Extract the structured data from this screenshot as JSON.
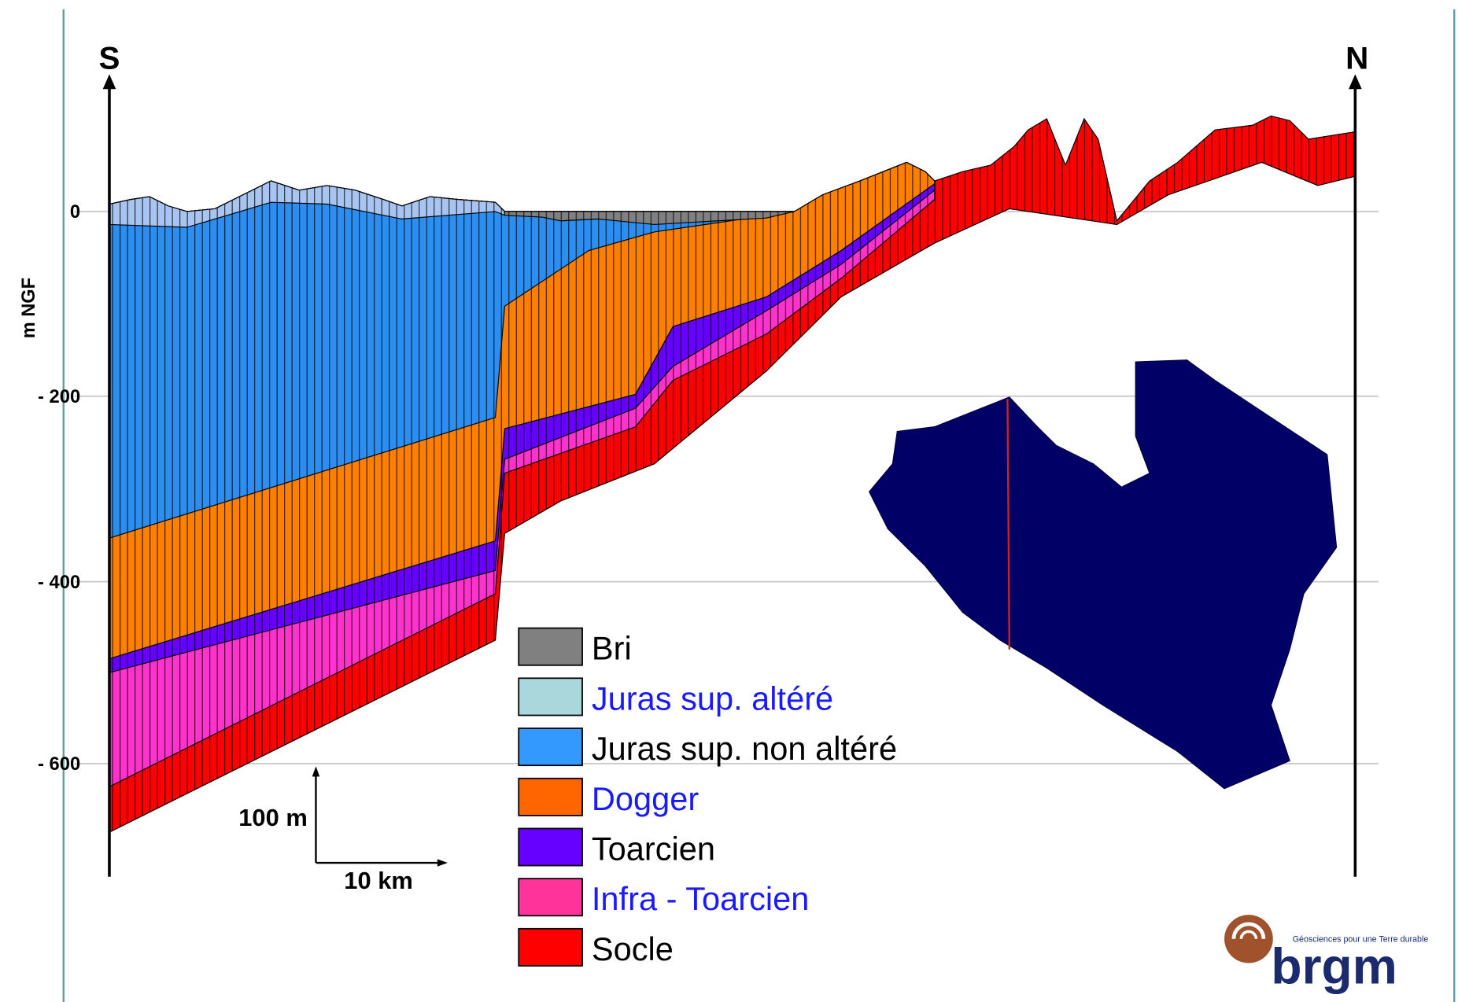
{
  "section": {
    "south_label": "S",
    "north_label": "N",
    "axis_label": "m NGF",
    "depth_labels": [
      "0",
      "- 200",
      "- 400",
      "- 600"
    ],
    "scale_vertical": "100 m",
    "scale_horizontal": "10  km"
  },
  "legend": [
    {
      "name": "Bri",
      "color": "#808080",
      "text_color": "#000000"
    },
    {
      "name": "Juras sup. altéré",
      "color": "#a9d7dc",
      "text_color": "#1a1aff"
    },
    {
      "name": "Juras sup. non altéré",
      "color": "#3399ff",
      "text_color": "#000000"
    },
    {
      "name": "Dogger",
      "color": "#ff6600",
      "text_color": "#1a1aff"
    },
    {
      "name": "Toarcien",
      "color": "#6600ff",
      "text_color": "#000000"
    },
    {
      "name": "Infra - Toarcien",
      "color": "#ff3399",
      "text_color": "#1a1aff"
    },
    {
      "name": "Socle",
      "color": "#ff0000",
      "text_color": "#000000"
    }
  ],
  "logo": {
    "name": "brgm",
    "tagline": "Géosciences pour une Terre durable"
  }
}
